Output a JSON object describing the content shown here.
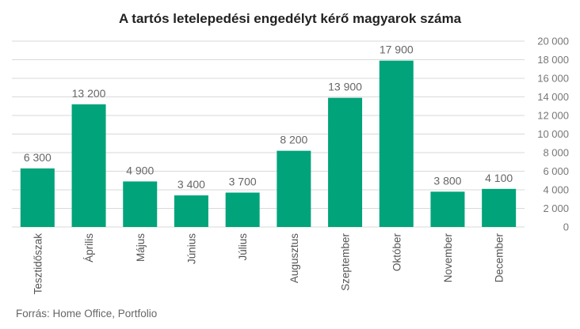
{
  "chart_data": {
    "type": "bar",
    "title": "A tartós letelepedési engedélyt kérő magyarok száma",
    "categories": [
      "Tesztidőszak",
      "Április",
      "Május",
      "Június",
      "Július",
      "Augusztus",
      "Szeptember",
      "Október",
      "November",
      "December"
    ],
    "values": [
      6300,
      13200,
      4900,
      3400,
      3700,
      8200,
      13900,
      17900,
      3800,
      4100
    ],
    "value_labels": [
      "6 300",
      "13 200",
      "4 900",
      "3 400",
      "3 700",
      "8 200",
      "13 900",
      "17 900",
      "3 800",
      "4 100"
    ],
    "ylim": [
      0,
      20000
    ],
    "yticks": [
      0,
      2000,
      4000,
      6000,
      8000,
      10000,
      12000,
      14000,
      16000,
      18000,
      20000
    ],
    "ytick_labels": [
      "0",
      "2 000",
      "4 000",
      "6 000",
      "8 000",
      "10 000",
      "12 000",
      "14 000",
      "16 000",
      "18 000",
      "20 000"
    ],
    "y_axis_position": "right",
    "grid": true,
    "bar_color": "#00a37a",
    "grid_color": "#d9d9d9"
  },
  "source": "Forrás: Home Office, Portfolio"
}
